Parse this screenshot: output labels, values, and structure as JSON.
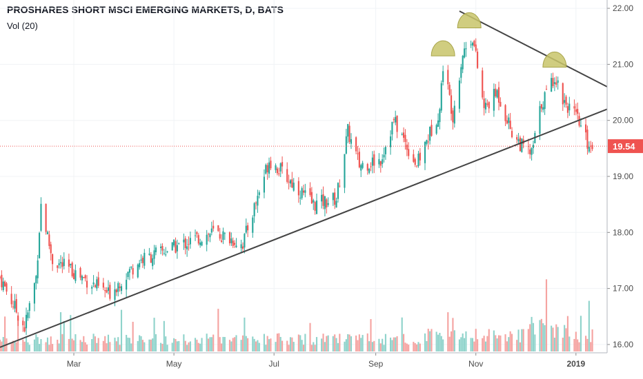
{
  "header": {
    "title": "PROSHARES SHORT MSCI EMERGING MARKETS, D, BATS",
    "indicator": "Vol (20)"
  },
  "colors": {
    "up": "#26a69a",
    "down": "#ef5350",
    "vol_up": "#8fd3cb",
    "vol_down": "#f5a3a1",
    "trendline": "#444444",
    "last_price": "#ef5350",
    "annotation": "#c8c46a"
  },
  "chart_data": {
    "type": "candlestick",
    "y_axis": {
      "range": [
        15.95,
        22.05
      ],
      "ticks": [
        "22.00",
        "21.00",
        "20.00",
        "19.00",
        "18.00",
        "17.00",
        "16.00"
      ],
      "position": "right"
    },
    "x_axis": {
      "range": [
        "2018-01-15",
        "2019-01-20"
      ],
      "ticks": [
        {
          "label": "Mar",
          "date": "2018-03-01",
          "bold": false
        },
        {
          "label": "May",
          "date": "2018-05-01",
          "bold": false
        },
        {
          "label": "Jul",
          "date": "2018-07-01",
          "bold": false
        },
        {
          "label": "Sep",
          "date": "2018-09-01",
          "bold": false
        },
        {
          "label": "Nov",
          "date": "2018-11-01",
          "bold": false
        },
        {
          "label": "2019",
          "date": "2019-01-01",
          "bold": true
        }
      ]
    },
    "last_price": {
      "value": 19.54,
      "label": "19.54"
    },
    "key_prices": [
      {
        "date": "2018-01-15",
        "close": 17.2
      },
      {
        "date": "2018-01-30",
        "close": 16.3
      },
      {
        "date": "2018-02-06",
        "close": 17.2
      },
      {
        "date": "2018-02-09",
        "close": 18.5
      },
      {
        "date": "2018-02-16",
        "close": 17.5
      },
      {
        "date": "2018-03-01",
        "close": 17.3
      },
      {
        "date": "2018-03-22",
        "close": 16.9
      },
      {
        "date": "2018-04-10",
        "close": 17.5
      },
      {
        "date": "2018-05-07",
        "close": 17.8
      },
      {
        "date": "2018-05-25",
        "close": 18.0
      },
      {
        "date": "2018-06-12",
        "close": 17.8
      },
      {
        "date": "2018-06-28",
        "close": 19.3
      },
      {
        "date": "2018-07-05",
        "close": 19.1
      },
      {
        "date": "2018-07-25",
        "close": 18.5
      },
      {
        "date": "2018-08-08",
        "close": 18.6
      },
      {
        "date": "2018-08-15",
        "close": 19.8
      },
      {
        "date": "2018-08-22",
        "close": 19.2
      },
      {
        "date": "2018-09-04",
        "close": 19.3
      },
      {
        "date": "2018-09-12",
        "close": 20.0
      },
      {
        "date": "2018-09-26",
        "close": 19.2
      },
      {
        "date": "2018-10-10",
        "close": 20.2
      },
      {
        "date": "2018-10-12",
        "close": 21.0
      },
      {
        "date": "2018-10-18",
        "close": 20.1
      },
      {
        "date": "2018-10-24",
        "close": 21.2
      },
      {
        "date": "2018-10-30",
        "close": 21.5
      },
      {
        "date": "2018-11-06",
        "close": 20.2
      },
      {
        "date": "2018-11-14",
        "close": 20.5
      },
      {
        "date": "2018-11-23",
        "close": 19.8
      },
      {
        "date": "2018-11-30",
        "close": 19.5
      },
      {
        "date": "2018-12-05",
        "close": 19.4
      },
      {
        "date": "2018-12-11",
        "close": 20.3
      },
      {
        "date": "2018-12-19",
        "close": 20.8
      },
      {
        "date": "2018-12-24",
        "close": 20.4
      },
      {
        "date": "2019-01-02",
        "close": 20.0
      },
      {
        "date": "2019-01-08",
        "close": 19.6
      },
      {
        "date": "2019-01-11",
        "close": 19.54
      }
    ],
    "trendlines": [
      {
        "from": {
          "date": "2018-01-15",
          "price": 15.95
        },
        "to": {
          "date": "2019-01-20",
          "price": 20.2
        }
      },
      {
        "from": {
          "date": "2018-10-22",
          "price": 21.95
        },
        "to": {
          "date": "2019-01-20",
          "price": 20.6
        }
      }
    ],
    "annotations": [
      {
        "shape": "arc",
        "date": "2018-10-12",
        "price": 21.15
      },
      {
        "shape": "arc",
        "date": "2018-10-28",
        "price": 21.65
      },
      {
        "shape": "arc",
        "date": "2018-12-19",
        "price": 20.95
      }
    ]
  }
}
